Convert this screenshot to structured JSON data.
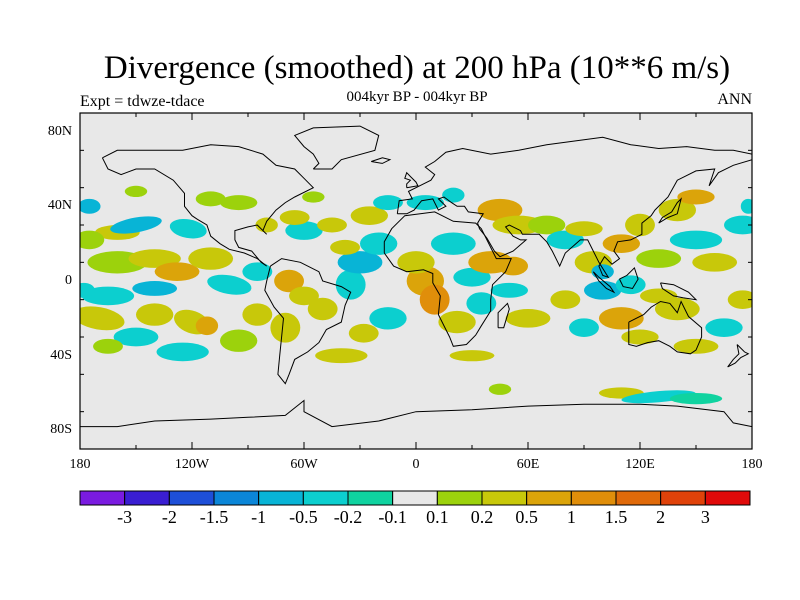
{
  "header": {
    "title": "Divergence (smoothed) at 200 hPa (10**6 m/s)",
    "subtitle": "004kyr BP - 004kyr BP",
    "left": "Expt = tdwze-tdace",
    "right": "ANN"
  },
  "colors": {
    "land_fill": "#e8e8e8",
    "coastline": "#000000",
    "frame": "#000000"
  },
  "chart_data": {
    "type": "heatmap",
    "projection": "cylindrical-equidistant",
    "xlim": [
      -180,
      180
    ],
    "ylim": [
      -90,
      90
    ],
    "lat_ticks": [
      {
        "value": 80,
        "label": "80N"
      },
      {
        "value": 40,
        "label": "40N"
      },
      {
        "value": 0,
        "label": "0"
      },
      {
        "value": -40,
        "label": "40S"
      },
      {
        "value": -80,
        "label": "80S"
      }
    ],
    "lon_ticks": [
      {
        "value": -180,
        "label": "180"
      },
      {
        "value": -120,
        "label": "120W"
      },
      {
        "value": -60,
        "label": "60W"
      },
      {
        "value": 0,
        "label": "0"
      },
      {
        "value": 60,
        "label": "60E"
      },
      {
        "value": 120,
        "label": "120E"
      },
      {
        "value": 180,
        "label": "180"
      }
    ],
    "colorbar": {
      "colors": [
        "#7a1be0",
        "#3a1ed2",
        "#1e4fd8",
        "#0b86d8",
        "#08b4d6",
        "#0ccfcf",
        "#10d3a0",
        "#e8e8e8",
        "#9cd20c",
        "#c8c80a",
        "#dba40a",
        "#e08e0a",
        "#e06a0a",
        "#e0420a",
        "#e00a0a"
      ],
      "labels": [
        "-3",
        "-2",
        "-1.5",
        "-1",
        "-0.5",
        "-0.2",
        "-0.1",
        "0.1",
        "0.2",
        "0.5",
        "1",
        "1.5",
        "2",
        "3"
      ]
    }
  }
}
